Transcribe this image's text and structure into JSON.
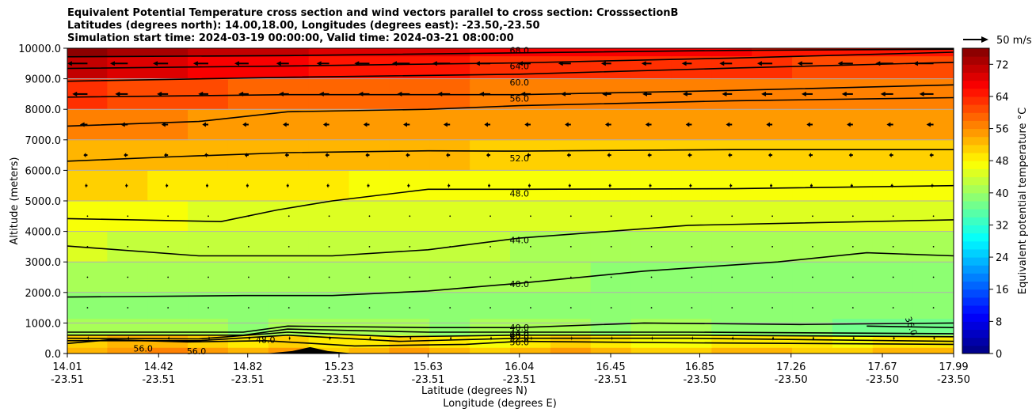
{
  "title": {
    "line1": "Equivalent Potential Temperature cross section and wind vectors parallel to cross section: CrosssectionB",
    "line2": "Latitudes (degrees north): 14.00,18.00, Longitudes (degrees east): -23.50,-23.50",
    "line3": "Simulation start time: 2024-03-19 00:00:00, Valid time: 2024-03-21 08:00:00"
  },
  "quiver_key": {
    "label": "50 m/s"
  },
  "colors": {
    "grid": "#b0b0b0",
    "contour": "#000000",
    "terrain": "#000000"
  },
  "chart_data": {
    "type": "heatmap",
    "title": "Equivalent Potential Temperature cross section and wind vectors parallel to cross section: CrosssectionB",
    "xlabel": "Latitude (degrees N)",
    "xlabel2": "Longitude (degrees E)",
    "ylabel": "Altitude (meters)",
    "colorbar_label": "Equivalent potential temperature °C",
    "ylim": [
      0,
      10000
    ],
    "clim": [
      0,
      76
    ],
    "x_ticks": [
      {
        "lat": "14.01",
        "lon": "-23.51"
      },
      {
        "lat": "14.42",
        "lon": "-23.51"
      },
      {
        "lat": "14.82",
        "lon": "-23.51"
      },
      {
        "lat": "15.23",
        "lon": "-23.51"
      },
      {
        "lat": "15.63",
        "lon": "-23.51"
      },
      {
        "lat": "16.04",
        "lon": "-23.51"
      },
      {
        "lat": "16.45",
        "lon": "-23.51"
      },
      {
        "lat": "16.85",
        "lon": "-23.50"
      },
      {
        "lat": "17.26",
        "lon": "-23.50"
      },
      {
        "lat": "17.67",
        "lon": "-23.50"
      },
      {
        "lat": "17.99",
        "lon": "-23.50"
      }
    ],
    "x_tick_positions": [
      14.01,
      14.42,
      14.82,
      15.23,
      15.63,
      16.04,
      16.45,
      16.85,
      17.26,
      17.67,
      17.99
    ],
    "y_ticks": [
      "0.0",
      "1000.0",
      "2000.0",
      "3000.0",
      "4000.0",
      "5000.0",
      "6000.0",
      "7000.0",
      "8000.0",
      "9000.0",
      "10000.0"
    ],
    "y_tick_values": [
      0,
      1000,
      2000,
      3000,
      4000,
      5000,
      6000,
      7000,
      8000,
      9000,
      10000
    ],
    "colorbar_ticks": [
      "0",
      "8",
      "16",
      "24",
      "32",
      "40",
      "48",
      "56",
      "64",
      "72"
    ],
    "colorbar_tick_values": [
      0,
      8,
      16,
      24,
      32,
      40,
      48,
      56,
      64,
      72
    ],
    "grid": true,
    "contour_labels": [
      "68.0",
      "64.0",
      "60.0",
      "56.0",
      "52.0",
      "48.0",
      "44.0",
      "40.0",
      "40.0",
      "44.0",
      "48.0",
      "52.0",
      "56.0",
      "56.0",
      "56.0",
      "48.0",
      "36.0"
    ],
    "contours": [
      {
        "level": 68,
        "points": [
          [
            14.01,
            9720
          ],
          [
            15.0,
            9760
          ],
          [
            16.04,
            9850
          ],
          [
            17.0,
            9930
          ],
          [
            17.99,
            9970
          ]
        ]
      },
      {
        "level": 64,
        "points": [
          [
            14.01,
            9340
          ],
          [
            15.0,
            9420
          ],
          [
            16.04,
            9520
          ],
          [
            17.0,
            9680
          ],
          [
            17.99,
            9870
          ]
        ]
      },
      {
        "level": 60,
        "points": [
          [
            14.01,
            8920
          ],
          [
            15.0,
            9050
          ],
          [
            16.04,
            9150
          ],
          [
            17.0,
            9350
          ],
          [
            17.99,
            9540
          ]
        ]
      },
      {
        "level": 56,
        "points": [
          [
            14.01,
            8400
          ],
          [
            15.0,
            8480
          ],
          [
            16.04,
            8480
          ],
          [
            17.0,
            8620
          ],
          [
            17.99,
            8800
          ]
        ]
      },
      {
        "level": 56,
        "points": [
          [
            14.01,
            7450
          ],
          [
            14.6,
            7600
          ],
          [
            15.0,
            7920
          ],
          [
            15.63,
            8000
          ],
          [
            16.04,
            8120
          ],
          [
            17.0,
            8280
          ],
          [
            17.99,
            8380
          ]
        ]
      },
      {
        "level": 52,
        "points": [
          [
            14.01,
            6300
          ],
          [
            14.5,
            6450
          ],
          [
            15.0,
            6580
          ],
          [
            15.63,
            6640
          ],
          [
            16.04,
            6630
          ],
          [
            17.0,
            6680
          ],
          [
            17.99,
            6680
          ]
        ]
      },
      {
        "level": 48,
        "points": [
          [
            14.01,
            4420
          ],
          [
            14.7,
            4320
          ],
          [
            14.95,
            4700
          ],
          [
            15.2,
            5000
          ],
          [
            15.63,
            5380
          ],
          [
            16.04,
            5380
          ],
          [
            17.0,
            5400
          ],
          [
            17.99,
            5500
          ]
        ]
      },
      {
        "level": 44,
        "points": [
          [
            14.01,
            3520
          ],
          [
            14.6,
            3200
          ],
          [
            15.2,
            3200
          ],
          [
            15.63,
            3400
          ],
          [
            16.04,
            3780
          ],
          [
            16.8,
            4200
          ],
          [
            17.99,
            4380
          ]
        ]
      },
      {
        "level": 40,
        "points": [
          [
            14.01,
            1850
          ],
          [
            14.8,
            1900
          ],
          [
            15.2,
            1900
          ],
          [
            15.63,
            2050
          ],
          [
            16.04,
            2300
          ],
          [
            16.6,
            2700
          ],
          [
            17.2,
            3000
          ],
          [
            17.6,
            3300
          ],
          [
            17.99,
            3200
          ]
        ]
      },
      {
        "level": 40,
        "points": [
          [
            14.01,
            700
          ],
          [
            14.8,
            700
          ],
          [
            15.0,
            900
          ],
          [
            15.63,
            850
          ],
          [
            16.04,
            850
          ],
          [
            16.6,
            1000
          ],
          [
            17.3,
            950
          ],
          [
            17.99,
            1000
          ]
        ]
      },
      {
        "level": 44,
        "points": [
          [
            14.01,
            600
          ],
          [
            14.8,
            600
          ],
          [
            15.0,
            800
          ],
          [
            15.63,
            700
          ],
          [
            16.04,
            700
          ],
          [
            16.8,
            700
          ],
          [
            17.99,
            650
          ]
        ]
      },
      {
        "level": 48,
        "points": [
          [
            14.01,
            500
          ],
          [
            14.6,
            480
          ],
          [
            15.0,
            700
          ],
          [
            15.5,
            550
          ],
          [
            16.04,
            600
          ],
          [
            16.8,
            600
          ],
          [
            17.99,
            550
          ]
        ]
      },
      {
        "level": 52,
        "points": [
          [
            14.01,
            420
          ],
          [
            14.6,
            420
          ],
          [
            15.0,
            600
          ],
          [
            15.5,
            400
          ],
          [
            16.04,
            500
          ],
          [
            16.8,
            500
          ],
          [
            17.99,
            400
          ]
        ]
      },
      {
        "level": 56,
        "points": [
          [
            14.01,
            330
          ],
          [
            14.2,
            450
          ],
          [
            14.55,
            380
          ],
          [
            14.9,
            420
          ],
          [
            15.3,
            250
          ],
          [
            15.8,
            300
          ],
          [
            16.04,
            400
          ],
          [
            16.8,
            350
          ],
          [
            17.99,
            300
          ]
        ]
      },
      {
        "level": 36,
        "points": [
          [
            17.6,
            900
          ],
          [
            17.99,
            850
          ]
        ]
      }
    ],
    "terrain": [
      [
        14.9,
        0
      ],
      [
        15.02,
        80
      ],
      [
        15.1,
        210
      ],
      [
        15.18,
        80
      ],
      [
        15.3,
        0
      ]
    ],
    "wind_rows": [
      {
        "z": 9500,
        "u": [
          -40,
          -35,
          -30,
          -30,
          -28,
          -25,
          -25,
          -30,
          -35,
          -35,
          -30,
          -25,
          -25,
          -20,
          -20,
          -20,
          -25,
          -30,
          -30,
          -30,
          -35,
          -40
        ]
      },
      {
        "z": 8500,
        "u": [
          -30,
          -25,
          -22,
          -20,
          -20,
          -20,
          -20,
          -22,
          -25,
          -25,
          -22,
          -20,
          -20,
          -18,
          -18,
          -18,
          -20,
          -22,
          -22,
          -22,
          -25,
          -28
        ]
      },
      {
        "z": 7500,
        "u": [
          -15,
          -14,
          -13,
          -12,
          -12,
          -12,
          -12,
          -12,
          -13,
          -13,
          -12,
          -12,
          -12,
          -12,
          -12,
          -12,
          -12,
          -12,
          -12,
          -12,
          -13,
          -14
        ]
      },
      {
        "z": 6500,
        "u": [
          -8,
          -8,
          -8,
          -8,
          -8,
          -8,
          -8,
          -8,
          -8,
          -8,
          -8,
          -8,
          -8,
          -8,
          -8,
          -8,
          -8,
          -8,
          -8,
          -8,
          -8,
          -8
        ]
      },
      {
        "z": 5500,
        "u": [
          -5,
          -5,
          -5,
          -5,
          -5,
          -5,
          -5,
          -5,
          -5,
          -5,
          -5,
          -5,
          -5,
          -5,
          -5,
          -5,
          -5,
          -5,
          -5,
          -5,
          -5,
          -5
        ]
      },
      {
        "z": 4500,
        "u": [
          -2,
          -2,
          -2,
          -2,
          -2,
          -2,
          -2,
          -2,
          -2,
          -2,
          -2,
          -2,
          -2,
          -2,
          -2,
          -2,
          -2,
          -2,
          -2,
          -2,
          -2,
          -2
        ]
      },
      {
        "z": 3500,
        "u": [
          -1,
          -1,
          -1,
          -1,
          -1,
          -1,
          -1,
          -1,
          -1,
          -1,
          -1,
          -1,
          -1,
          -1,
          -1,
          -1,
          -1,
          -1,
          -1,
          -1,
          -1,
          -1
        ]
      },
      {
        "z": 2500,
        "u": [
          1,
          1,
          1,
          1,
          1,
          1,
          1,
          1,
          1,
          1,
          1,
          1,
          1,
          1,
          1,
          1,
          1,
          1,
          1,
          1,
          1,
          1
        ]
      },
      {
        "z": 1500,
        "u": [
          1,
          1,
          1,
          1,
          1,
          1,
          1,
          1,
          1,
          1,
          1,
          1,
          1,
          1,
          1,
          1,
          1,
          1,
          1,
          1,
          1,
          1
        ]
      },
      {
        "z": 500,
        "u": [
          3,
          3,
          3,
          3,
          3,
          3,
          3,
          3,
          3,
          3,
          3,
          3,
          3,
          3,
          3,
          3,
          3,
          3,
          3,
          3,
          3,
          3
        ]
      }
    ],
    "wind_reference": 50,
    "theta_field_rows": [
      {
        "z": 0,
        "values": [
          52,
          54,
          56,
          54,
          52,
          55,
          50,
          52,
          54,
          52,
          51,
          53,
          54,
          52,
          51,
          50,
          52,
          53,
          51,
          50,
          52,
          52
        ]
      },
      {
        "z": 400,
        "values": [
          50,
          52,
          52,
          50,
          48,
          50,
          48,
          49,
          50,
          48,
          47,
          49,
          50,
          48,
          47,
          47,
          48,
          49,
          48,
          47,
          48,
          48
        ]
      },
      {
        "z": 800,
        "values": [
          40,
          40,
          41,
          40,
          38,
          40,
          41,
          40,
          40,
          39,
          40,
          40,
          40,
          39,
          40,
          40,
          39,
          38,
          38,
          37,
          36,
          36
        ]
      },
      {
        "z": 1500,
        "values": [
          39,
          39,
          38,
          38,
          38,
          38,
          38,
          38,
          38,
          38,
          38,
          38,
          38,
          38,
          38,
          38,
          38,
          38,
          38,
          38,
          38,
          38
        ]
      },
      {
        "z": 2500,
        "values": [
          41,
          41,
          41,
          41,
          40,
          40,
          40,
          40,
          40,
          40,
          40,
          40,
          40,
          39,
          39,
          39,
          39,
          39,
          39,
          39,
          39,
          39
        ]
      },
      {
        "z": 3500,
        "values": [
          44,
          43,
          43,
          43,
          43,
          42,
          42,
          42,
          42,
          42,
          42,
          41,
          41,
          41,
          41,
          41,
          41,
          41,
          41,
          41,
          41,
          41
        ]
      },
      {
        "z": 4500,
        "values": [
          47,
          47,
          46,
          45,
          45,
          45,
          45,
          45,
          45,
          45,
          44,
          44,
          44,
          44,
          44,
          44,
          44,
          44,
          44,
          44,
          44,
          44
        ]
      },
      {
        "z": 5500,
        "values": [
          50,
          50,
          49,
          49,
          49,
          48,
          48,
          47,
          47,
          47,
          47,
          47,
          47,
          47,
          47,
          47,
          47,
          47,
          47,
          47,
          47,
          47
        ]
      },
      {
        "z": 6500,
        "values": [
          53,
          53,
          52,
          52,
          52,
          52,
          52,
          52,
          52,
          52,
          51,
          51,
          51,
          51,
          51,
          51,
          51,
          51,
          51,
          51,
          51,
          51
        ]
      },
      {
        "z": 7500,
        "values": [
          56,
          56,
          56,
          55,
          55,
          55,
          54,
          54,
          54,
          54,
          54,
          54,
          54,
          54,
          54,
          54,
          54,
          54,
          54,
          54,
          54,
          54
        ]
      },
      {
        "z": 8500,
        "values": [
          62,
          61,
          60,
          60,
          59,
          59,
          58,
          58,
          58,
          58,
          57,
          57,
          57,
          57,
          57,
          57,
          57,
          57,
          56,
          56,
          56,
          56
        ]
      },
      {
        "z": 9500,
        "values": [
          70,
          69,
          68,
          67,
          66,
          66,
          65,
          65,
          64,
          64,
          63,
          63,
          63,
          62,
          62,
          62,
          62,
          62,
          61,
          61,
          60,
          60
        ]
      },
      {
        "z": 10000,
        "values": [
          74,
          73,
          72,
          71,
          70,
          70,
          69,
          69,
          68,
          68,
          67,
          67,
          67,
          66,
          66,
          66,
          66,
          65,
          65,
          64,
          64,
          64
        ]
      }
    ]
  }
}
